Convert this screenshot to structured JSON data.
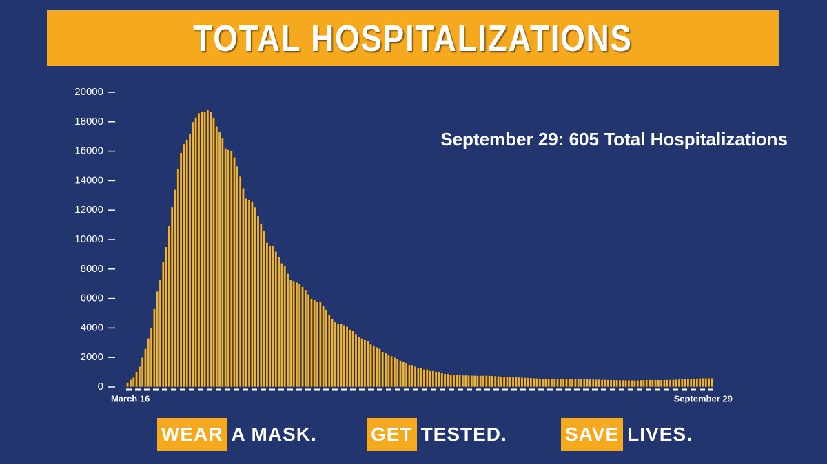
{
  "chart_data": {
    "type": "bar",
    "title": "TOTAL HOSPITALIZATIONS",
    "annotation": "September 29: 605 Total Hospitalizations",
    "color": "#f5b324",
    "ylim": [
      0,
      20000
    ],
    "yticks": [
      0,
      2000,
      4000,
      6000,
      8000,
      10000,
      12000,
      14000,
      16000,
      18000,
      20000
    ],
    "grid": false,
    "categories": [
      "March 16",
      null,
      null,
      null,
      null,
      null,
      null,
      null,
      null,
      null,
      null,
      null,
      null,
      null,
      null,
      null,
      null,
      null,
      null,
      null,
      null,
      null,
      null,
      null,
      null,
      null,
      null,
      null,
      null,
      null,
      null,
      null,
      null,
      null,
      null,
      null,
      null,
      null,
      null,
      null,
      null,
      null,
      null,
      null,
      null,
      null,
      null,
      null,
      null,
      null,
      null,
      null,
      null,
      null,
      null,
      null,
      null,
      null,
      null,
      null,
      null,
      null,
      null,
      null,
      null,
      null,
      null,
      null,
      null,
      null,
      null,
      null,
      null,
      null,
      null,
      null,
      null,
      null,
      null,
      null,
      null,
      null,
      null,
      null,
      null,
      null,
      null,
      null,
      null,
      null,
      null,
      null,
      null,
      null,
      null,
      null,
      null,
      null,
      null,
      null,
      null,
      null,
      null,
      null,
      null,
      null,
      null,
      null,
      null,
      null,
      null,
      null,
      null,
      null,
      null,
      null,
      null,
      null,
      null,
      null,
      null,
      null,
      null,
      null,
      null,
      null,
      null,
      null,
      null,
      null,
      null,
      null,
      null,
      null,
      null,
      null,
      null,
      null,
      null,
      null,
      null,
      null,
      null,
      null,
      null,
      null,
      null,
      null,
      null,
      null,
      null,
      null,
      null,
      null,
      null,
      null,
      null,
      null,
      null,
      null,
      null,
      null,
      null,
      null,
      null,
      null,
      null,
      null,
      null,
      null,
      null,
      null,
      null,
      null,
      null,
      null,
      null,
      null,
      null,
      null,
      null,
      null,
      null,
      null,
      null,
      null,
      null,
      null,
      null,
      null,
      null,
      null,
      null,
      null,
      null,
      null,
      null,
      "September 29"
    ],
    "values": [
      300,
      500,
      650,
      1000,
      1400,
      2000,
      2600,
      3300,
      4000,
      5300,
      6500,
      7300,
      8500,
      9500,
      10900,
      12200,
      13400,
      14800,
      15900,
      16500,
      16800,
      17200,
      18000,
      18300,
      18600,
      18700,
      18700,
      18800,
      18700,
      18300,
      17700,
      17300,
      16900,
      16200,
      16100,
      16000,
      15600,
      15000,
      14300,
      13500,
      12800,
      12700,
      12600,
      12200,
      11600,
      11100,
      10600,
      9800,
      9600,
      9600,
      9200,
      8800,
      8400,
      8200,
      7700,
      7300,
      7200,
      7100,
      7000,
      6800,
      6600,
      6300,
      6000,
      5900,
      5800,
      5800,
      5500,
      5200,
      4900,
      4600,
      4400,
      4300,
      4300,
      4200,
      4100,
      3900,
      3800,
      3600,
      3400,
      3300,
      3200,
      3100,
      2900,
      2800,
      2700,
      2600,
      2400,
      2300,
      2200,
      2100,
      2000,
      1900,
      1800,
      1700,
      1600,
      1500,
      1500,
      1400,
      1300,
      1300,
      1200,
      1200,
      1100,
      1100,
      1000,
      1000,
      950,
      900,
      900,
      850,
      850,
      850,
      820,
      800,
      800,
      790,
      790,
      780,
      780,
      770,
      780,
      780,
      770,
      760,
      750,
      740,
      720,
      700,
      690,
      680,
      680,
      670,
      660,
      650,
      640,
      630,
      620,
      600,
      590,
      580,
      570,
      560,
      560,
      560,
      560,
      550,
      560,
      560,
      560,
      560,
      560,
      550,
      540,
      540,
      530,
      530,
      520,
      520,
      510,
      510,
      500,
      500,
      490,
      490,
      480,
      480,
      470,
      470,
      460,
      460,
      460,
      460,
      460,
      470,
      480,
      490,
      490,
      490,
      490,
      480,
      480,
      490,
      490,
      500,
      500,
      510,
      520,
      530,
      540,
      550,
      560,
      570,
      580,
      590,
      600,
      600,
      600,
      605
    ]
  },
  "footer": [
    {
      "highlight": "WEAR",
      "text": "A MASK."
    },
    {
      "highlight": "GET",
      "text": "TESTED."
    },
    {
      "highlight": "SAVE",
      "text": "LIVES."
    }
  ]
}
